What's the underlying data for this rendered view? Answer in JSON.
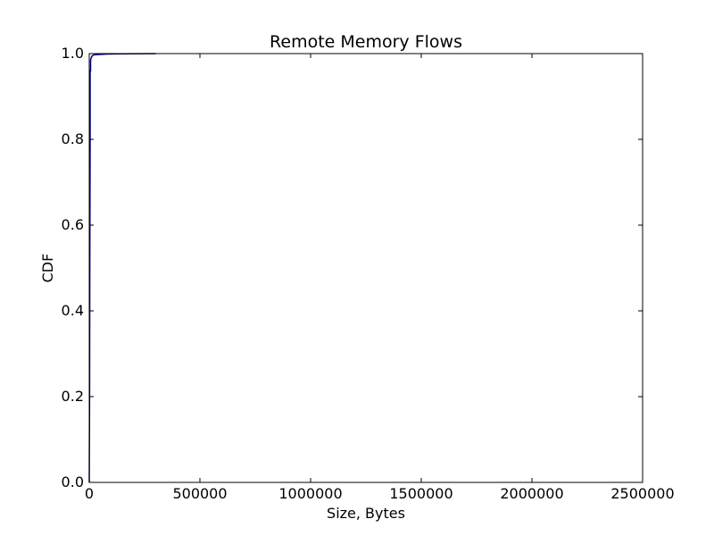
{
  "chart_data": {
    "type": "line",
    "title": "Remote Memory Flows",
    "xlabel": "Size, Bytes",
    "ylabel": "CDF",
    "xlim": [
      0,
      2500000
    ],
    "ylim": [
      0.0,
      1.0
    ],
    "xticks": [
      0,
      500000,
      1000000,
      1500000,
      2000000,
      2500000
    ],
    "xtick_labels": [
      "0",
      "500000",
      "1000000",
      "1500000",
      "2000000",
      "2500000"
    ],
    "yticks": [
      0.0,
      0.2,
      0.4,
      0.6,
      0.8,
      1.0
    ],
    "ytick_labels": [
      "0.0",
      "0.2",
      "0.4",
      "0.6",
      "0.8",
      "1.0"
    ],
    "grid": false,
    "series": [
      {
        "color": "#000080",
        "x": [
          0,
          1500,
          2500,
          4000,
          4000,
          6000,
          6000,
          9000,
          12000,
          20000,
          40000,
          80000,
          150000,
          300000
        ],
        "y": [
          0.0,
          0.2,
          0.5,
          0.8,
          0.96,
          0.96,
          0.985,
          0.99,
          0.994,
          0.997,
          0.998,
          0.999,
          0.9995,
          1.0
        ]
      }
    ]
  }
}
